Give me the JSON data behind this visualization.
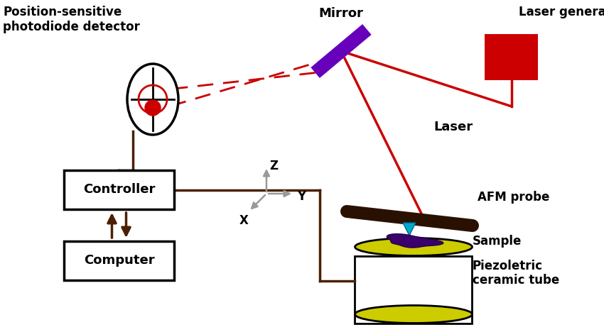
{
  "bg_color": "#ffffff",
  "brown": "#4A2000",
  "red": "#CC0000",
  "purple_mirror": "#6600BB",
  "gray": "#999999",
  "gold": "#CCCC00",
  "cyan_tip": "#00AACC",
  "dark_sample": "#330066",
  "cantilever_color": "#2A1000",
  "labels": {
    "photodetector": "Position-sensitive\nphotodiode detector",
    "mirror": "Mirror",
    "laser_gen": "Laser generator",
    "laser": "Laser",
    "afm_probe": "AFM probe",
    "sample": "Sample",
    "piezo": "Piezoletric\nceramic tube",
    "controller": "Controller",
    "computer": "Computer",
    "z": "Z",
    "y": "Y",
    "x": "X"
  }
}
